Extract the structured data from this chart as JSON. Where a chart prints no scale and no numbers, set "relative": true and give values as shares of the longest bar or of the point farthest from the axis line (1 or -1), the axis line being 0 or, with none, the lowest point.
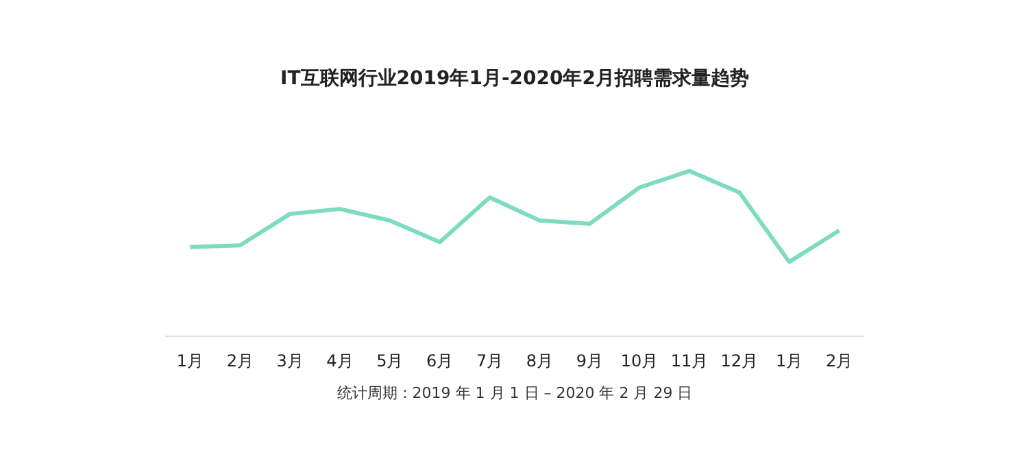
{
  "chart_data": {
    "type": "line",
    "title": "IT互联网行业2019年1月-2020年2月招聘需求量趋势",
    "categories": [
      "1月",
      "2月",
      "3月",
      "4月",
      "5月",
      "6月",
      "7月",
      "8月",
      "9月",
      "10月",
      "11月",
      "12月",
      "1月",
      "2月"
    ],
    "series": [
      {
        "color": "#7ddcc0",
        "values": [
          0.54,
          0.55,
          0.74,
          0.77,
          0.7,
          0.57,
          0.84,
          0.7,
          0.68,
          0.9,
          1,
          0.87,
          0.45,
          0.64
        ]
      }
    ],
    "relative": true,
    "grid": false,
    "marker": "none",
    "line_style": "solid",
    "annotations": [
      "统计周期：2019 年 1 月 1 日 – 2020 年 2 月 29 日"
    ]
  }
}
